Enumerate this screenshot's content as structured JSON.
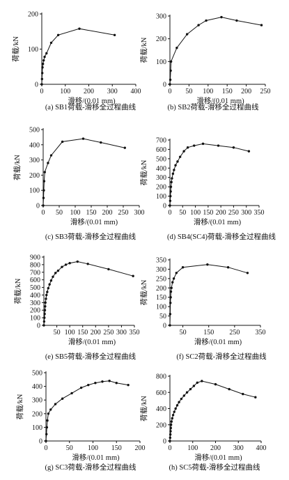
{
  "chart_data": [
    {
      "type": "line",
      "caption": "(a) SB1荷载-滑移全过程曲线",
      "xlabel": "滑移/(0.01 mm)",
      "ylabel": "荷载/kN",
      "xlim": [
        0,
        400
      ],
      "ylim": [
        0,
        200
      ],
      "xticks": [
        0,
        100,
        200,
        300,
        400
      ],
      "yticks": [
        0,
        100,
        200
      ],
      "x": [
        0,
        1,
        2,
        3,
        5,
        8,
        12,
        20,
        40,
        70,
        160,
        310
      ],
      "y": [
        0,
        15,
        32,
        48,
        58,
        68,
        78,
        88,
        118,
        140,
        158,
        140
      ]
    },
    {
      "type": "line",
      "caption": "(b) SB2荷载-滑移全过程曲线",
      "xlabel": "滑移/(0.01 mm)",
      "ylabel": "荷载/kN",
      "xlim": [
        0,
        250
      ],
      "ylim": [
        0,
        300
      ],
      "xticks": [
        0,
        50,
        100,
        150,
        200,
        250
      ],
      "yticks": [
        0,
        100,
        200,
        300
      ],
      "x": [
        0,
        1,
        2,
        3,
        18,
        45,
        75,
        95,
        135,
        175,
        240
      ],
      "y": [
        0,
        20,
        60,
        100,
        160,
        220,
        260,
        280,
        295,
        280,
        260
      ]
    },
    {
      "type": "line",
      "caption": "(c) SB3荷载-滑移全过程曲线",
      "xlabel": "滑移/(0.01 mm)",
      "ylabel": "荷载/kN",
      "xlim": [
        0,
        300
      ],
      "ylim": [
        0,
        500
      ],
      "xticks": [
        0,
        50,
        100,
        150,
        200,
        250,
        300
      ],
      "yticks": [
        0,
        100,
        200,
        300,
        400,
        500
      ],
      "x": [
        0,
        1,
        2,
        3,
        5,
        15,
        25,
        60,
        125,
        180,
        255
      ],
      "y": [
        0,
        50,
        100,
        160,
        220,
        280,
        330,
        420,
        440,
        415,
        380
      ]
    },
    {
      "type": "line",
      "caption": "(d) SB4(SC4)荷载-滑移全过程曲线",
      "xlabel": "滑移/(0.01 mm)",
      "ylabel": "荷载/kN",
      "xlim": [
        0,
        350
      ],
      "ylim": [
        0,
        700
      ],
      "xticks": [
        0,
        50,
        100,
        150,
        200,
        250,
        300,
        350
      ],
      "yticks": [
        0,
        100,
        200,
        300,
        400,
        500,
        600,
        700
      ],
      "x": [
        0,
        1,
        2,
        3,
        4,
        6,
        8,
        12,
        16,
        22,
        30,
        40,
        55,
        70,
        95,
        130,
        190,
        250,
        310
      ],
      "y": [
        0,
        50,
        100,
        150,
        200,
        250,
        290,
        340,
        380,
        430,
        470,
        520,
        580,
        620,
        640,
        660,
        640,
        620,
        580
      ]
    },
    {
      "type": "line",
      "caption": "(e) SB5荷载-滑移全过程曲线",
      "xlabel": "滑移/(0.01 mm)",
      "ylabel": "荷载/kN",
      "xlim": [
        0,
        350
      ],
      "ylim": [
        0,
        900
      ],
      "xticks": [
        50,
        100,
        150,
        200,
        250,
        300,
        350
      ],
      "yticks": [
        0,
        100,
        200,
        300,
        400,
        500,
        600,
        700,
        800,
        900
      ],
      "x": [
        0,
        1,
        2,
        3,
        4,
        5,
        6,
        8,
        10,
        13,
        17,
        22,
        28,
        35,
        45,
        55,
        70,
        85,
        100,
        130,
        170,
        250,
        345
      ],
      "y": [
        0,
        50,
        100,
        150,
        200,
        250,
        300,
        350,
        400,
        440,
        490,
        540,
        590,
        640,
        690,
        720,
        770,
        800,
        820,
        840,
        810,
        740,
        650
      ]
    },
    {
      "type": "line",
      "caption": "(f) SC2荷载-滑移全过程曲线",
      "xlabel": "滑移/(0.01 mm)",
      "ylabel": "荷载/kN",
      "xlim": [
        0,
        350
      ],
      "ylim": [
        0,
        350
      ],
      "xticks": [
        50,
        150,
        250,
        350
      ],
      "yticks": [
        0,
        50,
        100,
        150,
        200,
        250,
        300,
        350
      ],
      "x": [
        0,
        1,
        2,
        3,
        4,
        6,
        10,
        15,
        25,
        50,
        145,
        225,
        300
      ],
      "y": [
        0,
        60,
        120,
        150,
        180,
        200,
        230,
        250,
        280,
        310,
        325,
        310,
        280
      ]
    },
    {
      "type": "line",
      "caption": "(g) SC3荷载-滑移全过程曲线",
      "xlabel": "滑移/(0.01 mm)",
      "ylabel": "荷载/kN",
      "xlim": [
        0,
        200
      ],
      "ylim": [
        0,
        500
      ],
      "xticks": [
        0,
        50,
        100,
        150,
        200
      ],
      "yticks": [
        0,
        100,
        200,
        300,
        400,
        500
      ],
      "x": [
        0,
        1,
        2,
        3,
        5,
        10,
        20,
        35,
        55,
        75,
        90,
        105,
        120,
        135,
        150,
        175
      ],
      "y": [
        0,
        50,
        100,
        150,
        200,
        230,
        270,
        310,
        350,
        390,
        410,
        425,
        435,
        440,
        425,
        410
      ]
    },
    {
      "type": "line",
      "caption": "(h) SC5荷载-滑移全过程曲线",
      "xlabel": "滑移/(0.01 mm)",
      "ylabel": "荷载/kN",
      "xlim": [
        0,
        400
      ],
      "ylim": [
        0,
        800
      ],
      "xticks": [
        0,
        100,
        200,
        300,
        400
      ],
      "yticks": [
        0,
        200,
        400,
        600,
        800
      ],
      "x": [
        0,
        1,
        2,
        3,
        4,
        5,
        7,
        10,
        14,
        19,
        25,
        32,
        40,
        50,
        62,
        75,
        90,
        105,
        120,
        140,
        200,
        260,
        320,
        375
      ],
      "y": [
        0,
        40,
        80,
        120,
        160,
        200,
        240,
        280,
        320,
        360,
        400,
        440,
        480,
        520,
        560,
        600,
        640,
        680,
        720,
        740,
        700,
        640,
        580,
        540
      ]
    }
  ]
}
